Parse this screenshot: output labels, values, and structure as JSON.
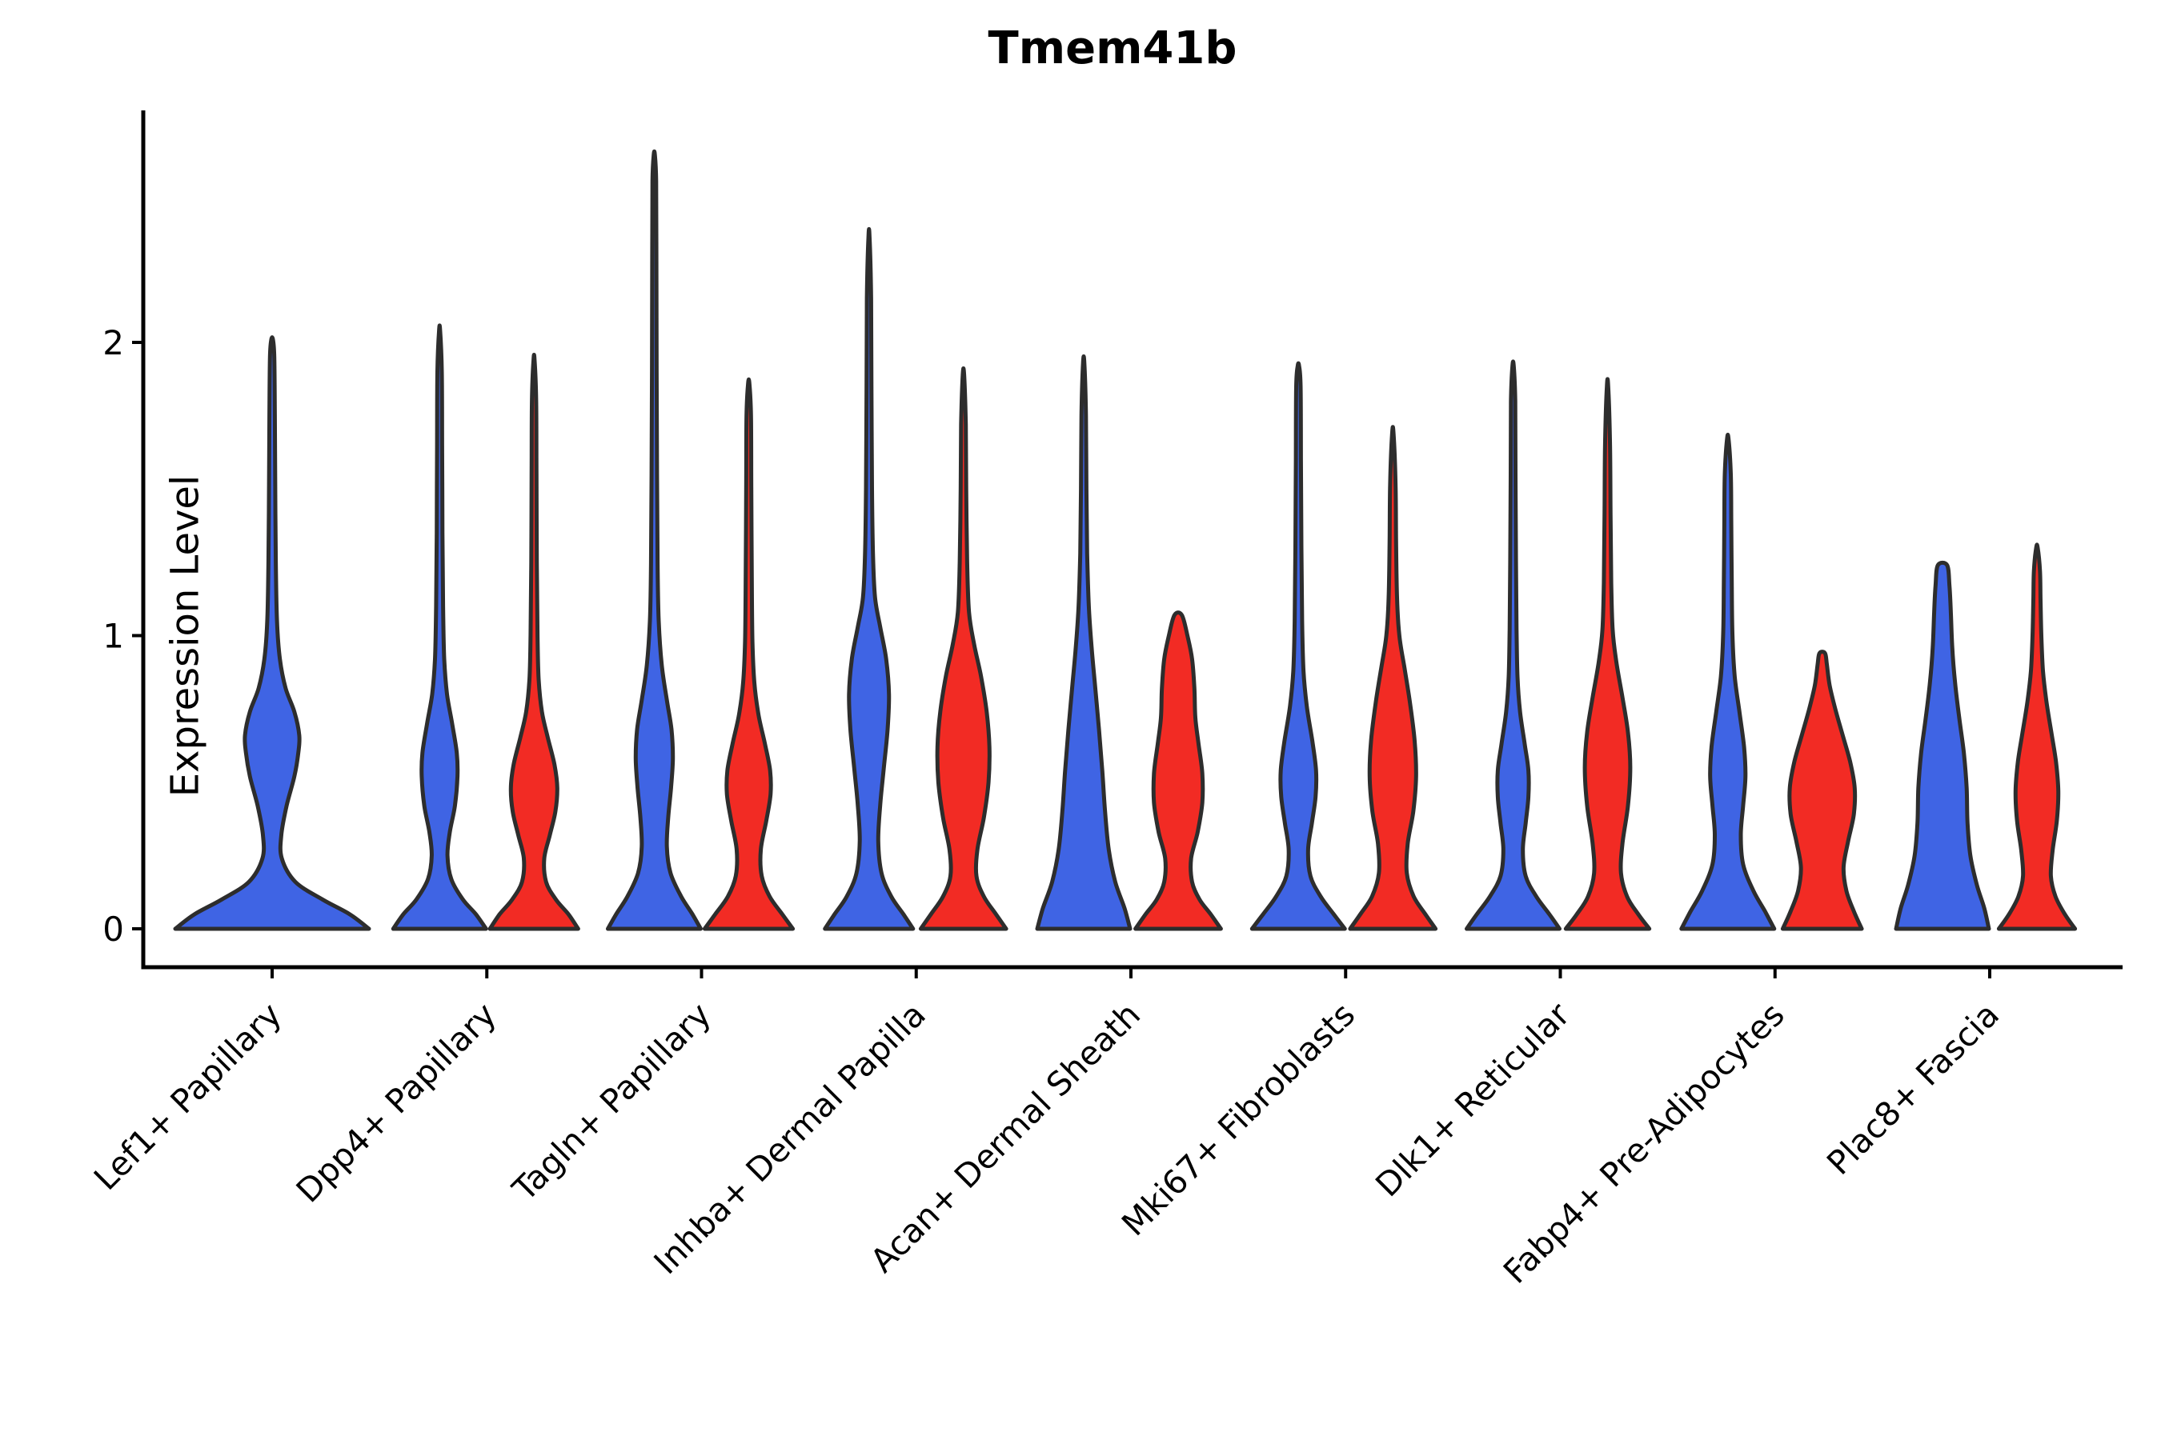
{
  "title": "Tmem41b",
  "axes": {
    "ylabel": "Expression Level",
    "ytick_labels": [
      "0",
      "1",
      "2"
    ]
  },
  "colors": {
    "blue": "#3F64E4",
    "red": "#F22B24",
    "outline": "#2D2D2D",
    "axis": "#000000"
  },
  "chart_data": {
    "type": "violin",
    "title": "Tmem41b",
    "xlabel": "",
    "ylabel": "Expression Level",
    "yticks": [
      0,
      1,
      2
    ],
    "ylim": [
      -0.13,
      2.79
    ],
    "grid": false,
    "legend": null,
    "split_colors": {
      "left": "blue",
      "right": "red"
    },
    "categories": [
      "Lef1+ Papillary",
      "Dpp4+ Papillary",
      "Tagln+ Papillary",
      "Inhba+ Dermal Papilla",
      "Acan+ Dermal Sheath",
      "Mki67+ Fibroblasts",
      "Dlk1+ Reticular",
      "Fabp4+ Pre-Adipocytes",
      "Plac8+ Fascia"
    ],
    "violins": [
      {
        "category": "Lef1+ Papillary",
        "color": "blue",
        "layout": "single",
        "max_expression": 2.01,
        "profile": [
          [
            0,
            1.0
          ],
          [
            0.05,
            0.8
          ],
          [
            0.1,
            0.52
          ],
          [
            0.16,
            0.24
          ],
          [
            0.24,
            0.1
          ],
          [
            0.32,
            0.095
          ],
          [
            0.42,
            0.15
          ],
          [
            0.52,
            0.23
          ],
          [
            0.6,
            0.27
          ],
          [
            0.66,
            0.28
          ],
          [
            0.74,
            0.23
          ],
          [
            0.82,
            0.14
          ],
          [
            0.92,
            0.08
          ],
          [
            1.05,
            0.05
          ],
          [
            1.25,
            0.038
          ],
          [
            1.5,
            0.032
          ],
          [
            1.75,
            0.028
          ],
          [
            1.95,
            0.022
          ],
          [
            2.01,
            0.008
          ]
        ]
      },
      {
        "category": "Dpp4+ Papillary",
        "color": "blue",
        "layout": "left",
        "max_expression": 2.04,
        "profile": [
          [
            0,
            1.0
          ],
          [
            0.05,
            0.78
          ],
          [
            0.1,
            0.5
          ],
          [
            0.17,
            0.25
          ],
          [
            0.25,
            0.17
          ],
          [
            0.33,
            0.22
          ],
          [
            0.42,
            0.33
          ],
          [
            0.52,
            0.385
          ],
          [
            0.6,
            0.37
          ],
          [
            0.7,
            0.27
          ],
          [
            0.8,
            0.16
          ],
          [
            0.92,
            0.1
          ],
          [
            1.1,
            0.075
          ],
          [
            1.35,
            0.062
          ],
          [
            1.65,
            0.055
          ],
          [
            1.9,
            0.048
          ],
          [
            2.04,
            0.012
          ]
        ]
      },
      {
        "category": "Dpp4+ Papillary",
        "color": "red",
        "layout": "right",
        "max_expression": 1.94,
        "profile": [
          [
            0,
            0.95
          ],
          [
            0.05,
            0.74
          ],
          [
            0.1,
            0.47
          ],
          [
            0.16,
            0.26
          ],
          [
            0.24,
            0.22
          ],
          [
            0.32,
            0.34
          ],
          [
            0.4,
            0.46
          ],
          [
            0.48,
            0.5
          ],
          [
            0.56,
            0.44
          ],
          [
            0.65,
            0.3
          ],
          [
            0.74,
            0.17
          ],
          [
            0.85,
            0.1
          ],
          [
            1.0,
            0.075
          ],
          [
            1.25,
            0.06
          ],
          [
            1.55,
            0.052
          ],
          [
            1.8,
            0.046
          ],
          [
            1.94,
            0.012
          ]
        ]
      },
      {
        "category": "Tagln+ Papillary",
        "color": "blue",
        "layout": "left",
        "max_expression": 2.64,
        "profile": [
          [
            0,
            1.0
          ],
          [
            0.05,
            0.82
          ],
          [
            0.11,
            0.58
          ],
          [
            0.19,
            0.35
          ],
          [
            0.28,
            0.27
          ],
          [
            0.38,
            0.3
          ],
          [
            0.48,
            0.36
          ],
          [
            0.58,
            0.4
          ],
          [
            0.68,
            0.37
          ],
          [
            0.78,
            0.27
          ],
          [
            0.9,
            0.16
          ],
          [
            1.05,
            0.095
          ],
          [
            1.25,
            0.07
          ],
          [
            1.55,
            0.058
          ],
          [
            1.9,
            0.05
          ],
          [
            2.3,
            0.045
          ],
          [
            2.55,
            0.04
          ],
          [
            2.64,
            0.012
          ]
        ]
      },
      {
        "category": "Tagln+ Papillary",
        "color": "red",
        "layout": "right",
        "max_expression": 1.86,
        "profile": [
          [
            0,
            0.95
          ],
          [
            0.05,
            0.72
          ],
          [
            0.11,
            0.45
          ],
          [
            0.18,
            0.28
          ],
          [
            0.27,
            0.26
          ],
          [
            0.37,
            0.38
          ],
          [
            0.46,
            0.47
          ],
          [
            0.54,
            0.46
          ],
          [
            0.63,
            0.35
          ],
          [
            0.73,
            0.21
          ],
          [
            0.84,
            0.12
          ],
          [
            0.98,
            0.08
          ],
          [
            1.2,
            0.065
          ],
          [
            1.5,
            0.055
          ],
          [
            1.75,
            0.048
          ],
          [
            1.86,
            0.014
          ]
        ]
      },
      {
        "category": "Inhba+ Dermal Papilla",
        "color": "blue",
        "layout": "left",
        "max_expression": 2.36,
        "profile": [
          [
            0,
            0.95
          ],
          [
            0.05,
            0.74
          ],
          [
            0.11,
            0.48
          ],
          [
            0.19,
            0.27
          ],
          [
            0.3,
            0.2
          ],
          [
            0.42,
            0.24
          ],
          [
            0.55,
            0.32
          ],
          [
            0.68,
            0.4
          ],
          [
            0.8,
            0.43
          ],
          [
            0.92,
            0.37
          ],
          [
            1.03,
            0.24
          ],
          [
            1.13,
            0.13
          ],
          [
            1.28,
            0.085
          ],
          [
            1.5,
            0.065
          ],
          [
            1.85,
            0.052
          ],
          [
            2.15,
            0.045
          ],
          [
            2.36,
            0.012
          ]
        ]
      },
      {
        "category": "Inhba+ Dermal Papilla",
        "color": "red",
        "layout": "right",
        "max_expression": 1.89,
        "profile": [
          [
            0,
            0.92
          ],
          [
            0.05,
            0.7
          ],
          [
            0.11,
            0.44
          ],
          [
            0.18,
            0.28
          ],
          [
            0.27,
            0.3
          ],
          [
            0.38,
            0.44
          ],
          [
            0.5,
            0.54
          ],
          [
            0.62,
            0.56
          ],
          [
            0.74,
            0.5
          ],
          [
            0.86,
            0.38
          ],
          [
            0.97,
            0.23
          ],
          [
            1.08,
            0.12
          ],
          [
            1.25,
            0.08
          ],
          [
            1.5,
            0.06
          ],
          [
            1.72,
            0.05
          ],
          [
            1.89,
            0.014
          ]
        ]
      },
      {
        "category": "Acan+ Dermal Sheath",
        "color": "blue",
        "layout": "left",
        "max_expression": 1.93,
        "profile": [
          [
            0,
            1.0
          ],
          [
            0.07,
            0.88
          ],
          [
            0.16,
            0.68
          ],
          [
            0.27,
            0.54
          ],
          [
            0.4,
            0.46
          ],
          [
            0.54,
            0.4
          ],
          [
            0.68,
            0.33
          ],
          [
            0.82,
            0.25
          ],
          [
            0.96,
            0.17
          ],
          [
            1.1,
            0.11
          ],
          [
            1.28,
            0.075
          ],
          [
            1.5,
            0.058
          ],
          [
            1.75,
            0.048
          ],
          [
            1.93,
            0.014
          ]
        ]
      },
      {
        "category": "Acan+ Dermal Sheath",
        "color": "red",
        "layout": "right",
        "max_expression": 1.07,
        "profile": [
          [
            0,
            0.92
          ],
          [
            0.05,
            0.7
          ],
          [
            0.1,
            0.46
          ],
          [
            0.16,
            0.3
          ],
          [
            0.24,
            0.28
          ],
          [
            0.33,
            0.42
          ],
          [
            0.43,
            0.52
          ],
          [
            0.53,
            0.52
          ],
          [
            0.63,
            0.44
          ],
          [
            0.72,
            0.37
          ],
          [
            0.82,
            0.35
          ],
          [
            0.92,
            0.3
          ],
          [
            1.0,
            0.2
          ],
          [
            1.07,
            0.08
          ]
        ]
      },
      {
        "category": "Mki67+ Fibroblasts",
        "color": "blue",
        "layout": "left",
        "max_expression": 1.92,
        "profile": [
          [
            0,
            1.0
          ],
          [
            0.05,
            0.76
          ],
          [
            0.11,
            0.48
          ],
          [
            0.18,
            0.26
          ],
          [
            0.27,
            0.21
          ],
          [
            0.36,
            0.29
          ],
          [
            0.45,
            0.37
          ],
          [
            0.54,
            0.38
          ],
          [
            0.64,
            0.3
          ],
          [
            0.76,
            0.18
          ],
          [
            0.88,
            0.11
          ],
          [
            1.05,
            0.08
          ],
          [
            1.3,
            0.065
          ],
          [
            1.6,
            0.055
          ],
          [
            1.85,
            0.048
          ],
          [
            1.92,
            0.014
          ]
        ]
      },
      {
        "category": "Mki67+ Fibroblasts",
        "color": "red",
        "layout": "right",
        "max_expression": 1.69,
        "profile": [
          [
            0,
            0.92
          ],
          [
            0.05,
            0.7
          ],
          [
            0.11,
            0.45
          ],
          [
            0.19,
            0.3
          ],
          [
            0.29,
            0.32
          ],
          [
            0.4,
            0.44
          ],
          [
            0.52,
            0.5
          ],
          [
            0.64,
            0.47
          ],
          [
            0.77,
            0.37
          ],
          [
            0.89,
            0.25
          ],
          [
            1.0,
            0.14
          ],
          [
            1.13,
            0.09
          ],
          [
            1.32,
            0.07
          ],
          [
            1.52,
            0.058
          ],
          [
            1.69,
            0.014
          ]
        ]
      },
      {
        "category": "Dlk1+ Reticular",
        "color": "blue",
        "layout": "left",
        "max_expression": 1.92,
        "profile": [
          [
            0,
            1.0
          ],
          [
            0.05,
            0.78
          ],
          [
            0.11,
            0.5
          ],
          [
            0.18,
            0.27
          ],
          [
            0.27,
            0.21
          ],
          [
            0.36,
            0.27
          ],
          [
            0.45,
            0.33
          ],
          [
            0.54,
            0.33
          ],
          [
            0.63,
            0.25
          ],
          [
            0.74,
            0.15
          ],
          [
            0.86,
            0.095
          ],
          [
            1.02,
            0.075
          ],
          [
            1.25,
            0.062
          ],
          [
            1.55,
            0.052
          ],
          [
            1.8,
            0.046
          ],
          [
            1.92,
            0.014
          ]
        ]
      },
      {
        "category": "Dlk1+ Reticular",
        "color": "red",
        "layout": "right",
        "max_expression": 1.85,
        "profile": [
          [
            0,
            0.9
          ],
          [
            0.05,
            0.66
          ],
          [
            0.11,
            0.42
          ],
          [
            0.19,
            0.29
          ],
          [
            0.29,
            0.32
          ],
          [
            0.42,
            0.44
          ],
          [
            0.55,
            0.49
          ],
          [
            0.67,
            0.44
          ],
          [
            0.79,
            0.32
          ],
          [
            0.91,
            0.19
          ],
          [
            1.02,
            0.11
          ],
          [
            1.18,
            0.08
          ],
          [
            1.4,
            0.065
          ],
          [
            1.65,
            0.054
          ],
          [
            1.85,
            0.014
          ]
        ]
      },
      {
        "category": "Fabp4+ Pre-Adipocytes",
        "color": "blue",
        "layout": "left",
        "max_expression": 1.67,
        "profile": [
          [
            0,
            1.0
          ],
          [
            0.06,
            0.8
          ],
          [
            0.13,
            0.55
          ],
          [
            0.22,
            0.33
          ],
          [
            0.32,
            0.28
          ],
          [
            0.42,
            0.33
          ],
          [
            0.52,
            0.38
          ],
          [
            0.62,
            0.35
          ],
          [
            0.74,
            0.25
          ],
          [
            0.86,
            0.15
          ],
          [
            1.0,
            0.1
          ],
          [
            1.18,
            0.085
          ],
          [
            1.38,
            0.075
          ],
          [
            1.55,
            0.065
          ],
          [
            1.67,
            0.016
          ]
        ]
      },
      {
        "category": "Fabp4+ Pre-Adipocytes",
        "color": "red",
        "layout": "right",
        "max_expression": 0.94,
        "profile": [
          [
            0,
            0.85
          ],
          [
            0.06,
            0.68
          ],
          [
            0.13,
            0.52
          ],
          [
            0.21,
            0.46
          ],
          [
            0.3,
            0.56
          ],
          [
            0.39,
            0.68
          ],
          [
            0.48,
            0.7
          ],
          [
            0.57,
            0.6
          ],
          [
            0.66,
            0.44
          ],
          [
            0.75,
            0.28
          ],
          [
            0.83,
            0.16
          ],
          [
            0.9,
            0.1
          ],
          [
            0.94,
            0.06
          ]
        ]
      },
      {
        "category": "Plac8+ Fascia",
        "color": "blue",
        "layout": "left",
        "max_expression": 1.24,
        "profile": [
          [
            0,
            1.0
          ],
          [
            0.07,
            0.9
          ],
          [
            0.15,
            0.74
          ],
          [
            0.25,
            0.6
          ],
          [
            0.36,
            0.54
          ],
          [
            0.48,
            0.52
          ],
          [
            0.6,
            0.46
          ],
          [
            0.72,
            0.36
          ],
          [
            0.84,
            0.27
          ],
          [
            0.96,
            0.21
          ],
          [
            1.08,
            0.18
          ],
          [
            1.17,
            0.15
          ],
          [
            1.24,
            0.1
          ]
        ]
      },
      {
        "category": "Plac8+ Fascia",
        "color": "red",
        "layout": "right",
        "max_expression": 1.3,
        "profile": [
          [
            0,
            0.82
          ],
          [
            0.05,
            0.6
          ],
          [
            0.11,
            0.4
          ],
          [
            0.18,
            0.3
          ],
          [
            0.27,
            0.34
          ],
          [
            0.37,
            0.43
          ],
          [
            0.47,
            0.46
          ],
          [
            0.57,
            0.41
          ],
          [
            0.67,
            0.31
          ],
          [
            0.78,
            0.2
          ],
          [
            0.88,
            0.13
          ],
          [
            1.0,
            0.095
          ],
          [
            1.12,
            0.078
          ],
          [
            1.22,
            0.065
          ],
          [
            1.3,
            0.016
          ]
        ]
      }
    ]
  }
}
